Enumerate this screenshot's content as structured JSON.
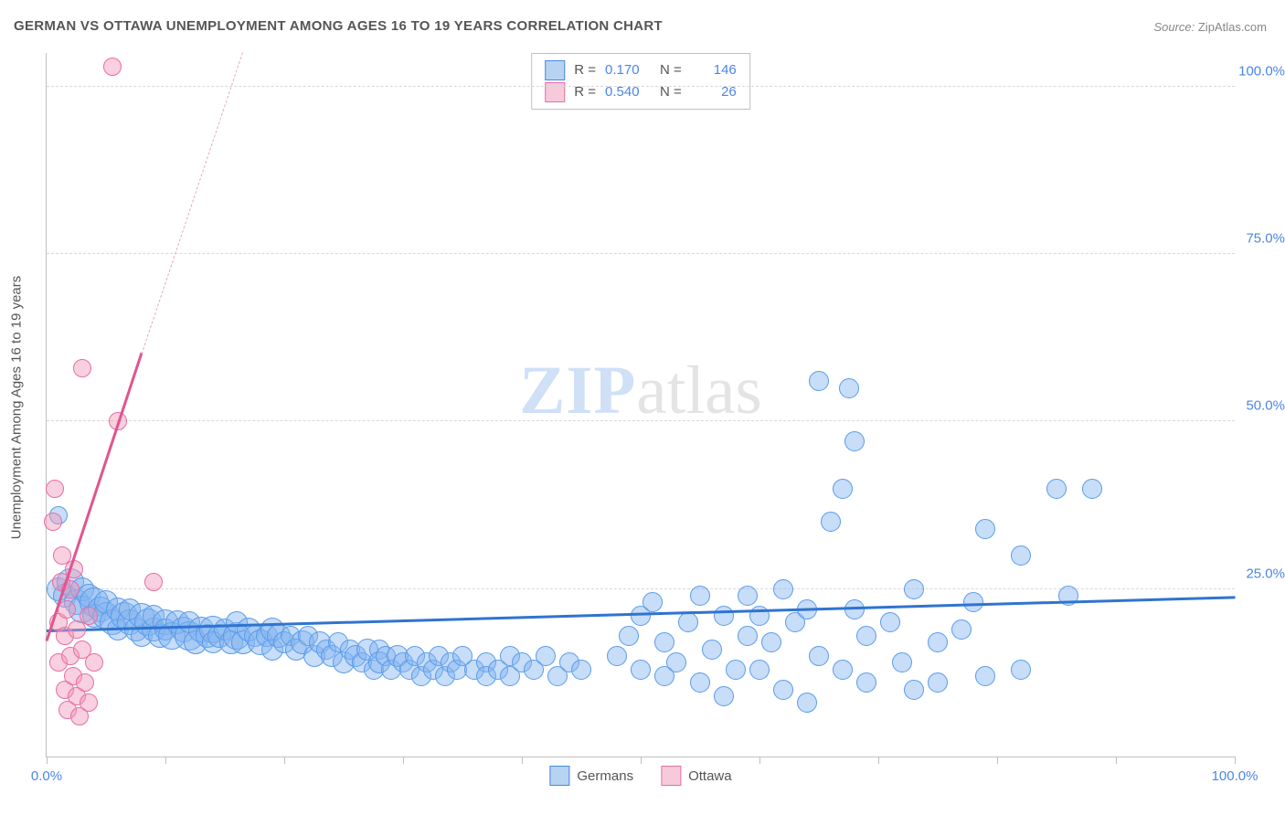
{
  "title": "GERMAN VS OTTAWA UNEMPLOYMENT AMONG AGES 16 TO 19 YEARS CORRELATION CHART",
  "source_label": "Source: ",
  "source_value": "ZipAtlas.com",
  "y_axis_title": "Unemployment Among Ages 16 to 19 years",
  "watermark": {
    "part1": "ZIP",
    "part2": "atlas"
  },
  "chart": {
    "type": "scatter-correlation",
    "background_color": "#ffffff",
    "grid_color": "#d9d9d9",
    "axis_color": "#bfbfbf",
    "label_color": "#4a86e8",
    "text_color": "#555555",
    "xlim": [
      0,
      100
    ],
    "ylim": [
      0,
      105
    ],
    "x_ticks": [
      0,
      10,
      20,
      30,
      40,
      50,
      60,
      70,
      80,
      90,
      100
    ],
    "x_tick_labels": {
      "0": "0.0%",
      "100": "100.0%"
    },
    "y_ticks": [
      25,
      50,
      75,
      100
    ],
    "y_tick_labels": [
      "25.0%",
      "50.0%",
      "75.0%",
      "100.0%"
    ],
    "marker_base_radius": 8
  },
  "stat_legend": [
    {
      "swatch_fill": "#b7d3f2",
      "swatch_border": "#4a86e8",
      "R_label": "R =",
      "R": "0.170",
      "N_label": "N =",
      "N": "146"
    },
    {
      "swatch_fill": "#f7cadb",
      "swatch_border": "#e86ea4",
      "R_label": "R =",
      "R": "0.540",
      "N_label": "N =",
      "N": "26"
    }
  ],
  "series_legend": [
    {
      "label": "Germans",
      "swatch_fill": "#b7d3f2",
      "swatch_border": "#4a86e8"
    },
    {
      "label": "Ottawa",
      "swatch_fill": "#f7cadb",
      "swatch_border": "#e86ea4"
    }
  ],
  "series": [
    {
      "name": "Germans",
      "fill": "rgba(130,180,240,0.45)",
      "stroke": "#5a9bea",
      "trend": {
        "x1": 0,
        "y1": 18.5,
        "x2": 100,
        "y2": 23.5,
        "color": "#2f74d0",
        "width": 3,
        "dash": "none"
      },
      "points": [
        {
          "x": 1,
          "y": 36,
          "r": 9
        },
        {
          "x": 1,
          "y": 25,
          "r": 12
        },
        {
          "x": 1.5,
          "y": 24,
          "r": 12
        },
        {
          "x": 2,
          "y": 26,
          "r": 14
        },
        {
          "x": 2.5,
          "y": 23,
          "r": 13
        },
        {
          "x": 3,
          "y": 25,
          "r": 12
        },
        {
          "x": 3,
          "y": 22,
          "r": 14
        },
        {
          "x": 3.5,
          "y": 24,
          "r": 12
        },
        {
          "x": 4,
          "y": 23,
          "r": 15
        },
        {
          "x": 4,
          "y": 21,
          "r": 12
        },
        {
          "x": 4.5,
          "y": 22,
          "r": 13
        },
        {
          "x": 5,
          "y": 21,
          "r": 14
        },
        {
          "x": 5,
          "y": 23,
          "r": 12
        },
        {
          "x": 5.5,
          "y": 20,
          "r": 13
        },
        {
          "x": 6,
          "y": 22,
          "r": 12
        },
        {
          "x": 6,
          "y": 19,
          "r": 11
        },
        {
          "x": 6.5,
          "y": 21,
          "r": 14
        },
        {
          "x": 7,
          "y": 20,
          "r": 13
        },
        {
          "x": 7,
          "y": 22,
          "r": 11
        },
        {
          "x": 7.5,
          "y": 19,
          "r": 12
        },
        {
          "x": 8,
          "y": 21,
          "r": 13
        },
        {
          "x": 8,
          "y": 18,
          "r": 11
        },
        {
          "x": 8.5,
          "y": 20,
          "r": 14
        },
        {
          "x": 9,
          "y": 19,
          "r": 12
        },
        {
          "x": 9,
          "y": 21,
          "r": 11
        },
        {
          "x": 9.5,
          "y": 18,
          "r": 12
        },
        {
          "x": 10,
          "y": 20,
          "r": 13
        },
        {
          "x": 10,
          "y": 19,
          "r": 11
        },
        {
          "x": 10.5,
          "y": 18,
          "r": 14
        },
        {
          "x": 11,
          "y": 20,
          "r": 12
        },
        {
          "x": 11.5,
          "y": 19,
          "r": 13
        },
        {
          "x": 12,
          "y": 18,
          "r": 15
        },
        {
          "x": 12,
          "y": 20,
          "r": 11
        },
        {
          "x": 12.5,
          "y": 17,
          "r": 12
        },
        {
          "x": 13,
          "y": 19,
          "r": 13
        },
        {
          "x": 13.5,
          "y": 18,
          "r": 12
        },
        {
          "x": 14,
          "y": 19,
          "r": 14
        },
        {
          "x": 14,
          "y": 17,
          "r": 11
        },
        {
          "x": 14.5,
          "y": 18,
          "r": 12
        },
        {
          "x": 15,
          "y": 19,
          "r": 11
        },
        {
          "x": 15.5,
          "y": 17,
          "r": 12
        },
        {
          "x": 16,
          "y": 18,
          "r": 14
        },
        {
          "x": 16,
          "y": 20,
          "r": 11
        },
        {
          "x": 16.5,
          "y": 17,
          "r": 12
        },
        {
          "x": 17,
          "y": 19,
          "r": 12
        },
        {
          "x": 17.5,
          "y": 18,
          "r": 11
        },
        {
          "x": 18,
          "y": 17,
          "r": 13
        },
        {
          "x": 18.5,
          "y": 18,
          "r": 11
        },
        {
          "x": 19,
          "y": 19,
          "r": 12
        },
        {
          "x": 19,
          "y": 16,
          "r": 11
        },
        {
          "x": 19.5,
          "y": 18,
          "r": 12
        },
        {
          "x": 20,
          "y": 17,
          "r": 11
        },
        {
          "x": 20.5,
          "y": 18,
          "r": 10
        },
        {
          "x": 21,
          "y": 16,
          "r": 11
        },
        {
          "x": 21.5,
          "y": 17,
          "r": 12
        },
        {
          "x": 22,
          "y": 18,
          "r": 10
        },
        {
          "x": 22.5,
          "y": 15,
          "r": 11
        },
        {
          "x": 23,
          "y": 17,
          "r": 11
        },
        {
          "x": 23.5,
          "y": 16,
          "r": 10
        },
        {
          "x": 24,
          "y": 15,
          "r": 11
        },
        {
          "x": 24.5,
          "y": 17,
          "r": 10
        },
        {
          "x": 25,
          "y": 14,
          "r": 11
        },
        {
          "x": 25.5,
          "y": 16,
          "r": 10
        },
        {
          "x": 26,
          "y": 15,
          "r": 11
        },
        {
          "x": 26.5,
          "y": 14,
          "r": 10
        },
        {
          "x": 27,
          "y": 16,
          "r": 11
        },
        {
          "x": 27.5,
          "y": 13,
          "r": 10
        },
        {
          "x": 28,
          "y": 16,
          "r": 10
        },
        {
          "x": 28,
          "y": 14,
          "r": 11
        },
        {
          "x": 28.5,
          "y": 15,
          "r": 10
        },
        {
          "x": 29,
          "y": 13,
          "r": 10
        },
        {
          "x": 29.5,
          "y": 15,
          "r": 11
        },
        {
          "x": 30,
          "y": 14,
          "r": 10
        },
        {
          "x": 30.5,
          "y": 13,
          "r": 10
        },
        {
          "x": 31,
          "y": 15,
          "r": 10
        },
        {
          "x": 31.5,
          "y": 12,
          "r": 10
        },
        {
          "x": 32,
          "y": 14,
          "r": 10
        },
        {
          "x": 32.5,
          "y": 13,
          "r": 10
        },
        {
          "x": 33,
          "y": 15,
          "r": 10
        },
        {
          "x": 33.5,
          "y": 12,
          "r": 10
        },
        {
          "x": 34,
          "y": 14,
          "r": 10
        },
        {
          "x": 34.5,
          "y": 13,
          "r": 10
        },
        {
          "x": 35,
          "y": 15,
          "r": 10
        },
        {
          "x": 36,
          "y": 13,
          "r": 10
        },
        {
          "x": 37,
          "y": 14,
          "r": 10
        },
        {
          "x": 37,
          "y": 12,
          "r": 10
        },
        {
          "x": 38,
          "y": 13,
          "r": 10
        },
        {
          "x": 39,
          "y": 15,
          "r": 10
        },
        {
          "x": 39,
          "y": 12,
          "r": 10
        },
        {
          "x": 40,
          "y": 14,
          "r": 10
        },
        {
          "x": 41,
          "y": 13,
          "r": 10
        },
        {
          "x": 42,
          "y": 15,
          "r": 10
        },
        {
          "x": 43,
          "y": 12,
          "r": 10
        },
        {
          "x": 44,
          "y": 14,
          "r": 10
        },
        {
          "x": 45,
          "y": 13,
          "r": 10
        },
        {
          "x": 48,
          "y": 15,
          "r": 10
        },
        {
          "x": 49,
          "y": 18,
          "r": 10
        },
        {
          "x": 50,
          "y": 13,
          "r": 10
        },
        {
          "x": 50,
          "y": 21,
          "r": 10
        },
        {
          "x": 51,
          "y": 23,
          "r": 10
        },
        {
          "x": 52,
          "y": 12,
          "r": 10
        },
        {
          "x": 52,
          "y": 17,
          "r": 10
        },
        {
          "x": 53,
          "y": 14,
          "r": 10
        },
        {
          "x": 54,
          "y": 20,
          "r": 10
        },
        {
          "x": 55,
          "y": 11,
          "r": 10
        },
        {
          "x": 55,
          "y": 24,
          "r": 10
        },
        {
          "x": 56,
          "y": 16,
          "r": 10
        },
        {
          "x": 57,
          "y": 21,
          "r": 10
        },
        {
          "x": 57,
          "y": 9,
          "r": 10
        },
        {
          "x": 58,
          "y": 13,
          "r": 10
        },
        {
          "x": 59,
          "y": 18,
          "r": 10
        },
        {
          "x": 59,
          "y": 24,
          "r": 10
        },
        {
          "x": 60,
          "y": 21,
          "r": 10
        },
        {
          "x": 60,
          "y": 13,
          "r": 10
        },
        {
          "x": 61,
          "y": 17,
          "r": 10
        },
        {
          "x": 62,
          "y": 10,
          "r": 10
        },
        {
          "x": 62,
          "y": 25,
          "r": 10
        },
        {
          "x": 63,
          "y": 20,
          "r": 10
        },
        {
          "x": 64,
          "y": 8,
          "r": 10
        },
        {
          "x": 64,
          "y": 22,
          "r": 10
        },
        {
          "x": 65,
          "y": 15,
          "r": 10
        },
        {
          "x": 65,
          "y": 56,
          "r": 10
        },
        {
          "x": 66,
          "y": 35,
          "r": 10
        },
        {
          "x": 67,
          "y": 40,
          "r": 10
        },
        {
          "x": 67,
          "y": 13,
          "r": 10
        },
        {
          "x": 67.5,
          "y": 55,
          "r": 10
        },
        {
          "x": 68,
          "y": 22,
          "r": 10
        },
        {
          "x": 68,
          "y": 47,
          "r": 10
        },
        {
          "x": 69,
          "y": 11,
          "r": 10
        },
        {
          "x": 69,
          "y": 18,
          "r": 10
        },
        {
          "x": 71,
          "y": 20,
          "r": 10
        },
        {
          "x": 72,
          "y": 14,
          "r": 10
        },
        {
          "x": 73,
          "y": 10,
          "r": 10
        },
        {
          "x": 75,
          "y": 17,
          "r": 10
        },
        {
          "x": 75,
          "y": 11,
          "r": 10
        },
        {
          "x": 77,
          "y": 19,
          "r": 10
        },
        {
          "x": 78,
          "y": 23,
          "r": 10
        },
        {
          "x": 79,
          "y": 12,
          "r": 10
        },
        {
          "x": 79,
          "y": 34,
          "r": 10
        },
        {
          "x": 82,
          "y": 30,
          "r": 10
        },
        {
          "x": 85,
          "y": 40,
          "r": 10
        },
        {
          "x": 86,
          "y": 24,
          "r": 10
        },
        {
          "x": 88,
          "y": 40,
          "r": 10
        },
        {
          "x": 82,
          "y": 13,
          "r": 10
        },
        {
          "x": 73,
          "y": 25,
          "r": 10
        }
      ]
    },
    {
      "name": "Ottawa",
      "fill": "rgba(240,150,185,0.45)",
      "stroke": "#e86ea4",
      "trend_solid": {
        "x1": 0,
        "y1": 17,
        "x2": 8,
        "y2": 60,
        "color": "#e05590",
        "width": 3
      },
      "trend_dash": {
        "x1": 8,
        "y1": 60,
        "x2": 16.5,
        "y2": 105,
        "color": "#e9a8c4",
        "width": 1.5
      },
      "points": [
        {
          "x": 0.5,
          "y": 35,
          "r": 9
        },
        {
          "x": 0.7,
          "y": 40,
          "r": 9
        },
        {
          "x": 1,
          "y": 20,
          "r": 9
        },
        {
          "x": 1,
          "y": 14,
          "r": 9
        },
        {
          "x": 1.2,
          "y": 26,
          "r": 9
        },
        {
          "x": 1.3,
          "y": 30,
          "r": 9
        },
        {
          "x": 1.5,
          "y": 18,
          "r": 9
        },
        {
          "x": 1.5,
          "y": 10,
          "r": 9
        },
        {
          "x": 1.7,
          "y": 22,
          "r": 9
        },
        {
          "x": 1.8,
          "y": 7,
          "r": 9
        },
        {
          "x": 2,
          "y": 15,
          "r": 9
        },
        {
          "x": 2,
          "y": 25,
          "r": 9
        },
        {
          "x": 2.2,
          "y": 12,
          "r": 9
        },
        {
          "x": 2.3,
          "y": 28,
          "r": 9
        },
        {
          "x": 2.5,
          "y": 9,
          "r": 9
        },
        {
          "x": 2.5,
          "y": 19,
          "r": 9
        },
        {
          "x": 2.8,
          "y": 6,
          "r": 9
        },
        {
          "x": 3,
          "y": 16,
          "r": 9
        },
        {
          "x": 3,
          "y": 58,
          "r": 9
        },
        {
          "x": 3.2,
          "y": 11,
          "r": 9
        },
        {
          "x": 3.5,
          "y": 21,
          "r": 9
        },
        {
          "x": 3.5,
          "y": 8,
          "r": 9
        },
        {
          "x": 4,
          "y": 14,
          "r": 9
        },
        {
          "x": 5.5,
          "y": 103,
          "r": 9
        },
        {
          "x": 6,
          "y": 50,
          "r": 9
        },
        {
          "x": 9,
          "y": 26,
          "r": 9
        }
      ]
    }
  ]
}
